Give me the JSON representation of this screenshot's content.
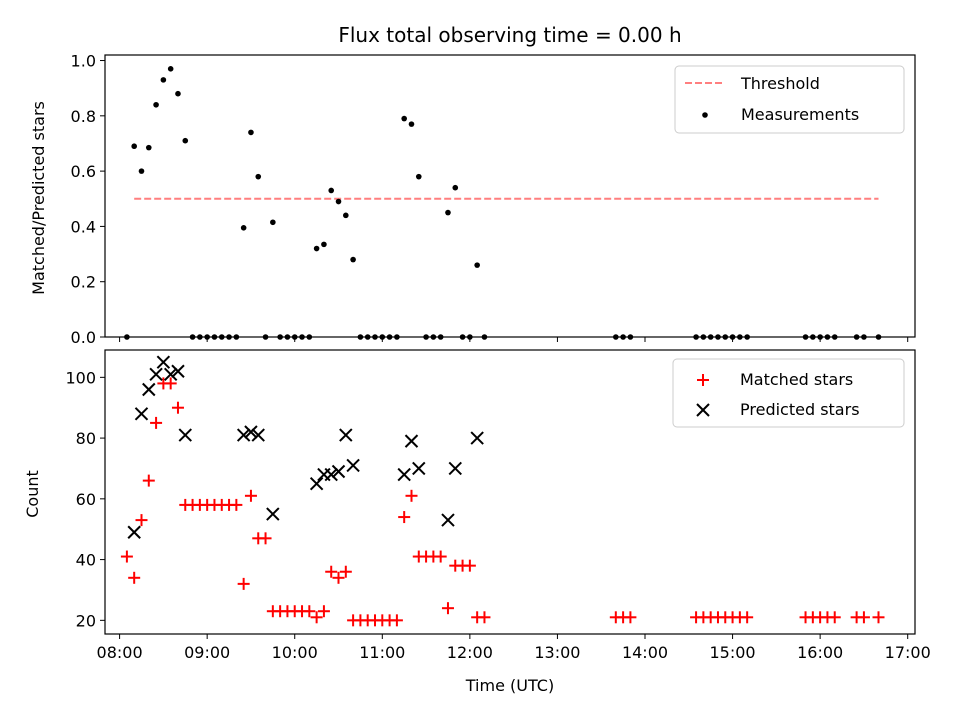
{
  "chart_data": [
    {
      "type": "scatter",
      "title": "Flux total observing time = 0.00 h",
      "xlabel": "",
      "ylabel": "Matched/Predicted stars",
      "xlim": [
        "07:50",
        "17:05"
      ],
      "ylim": [
        0,
        1.02
      ],
      "yticks": [
        "0.0",
        "0.2",
        "0.4",
        "0.6",
        "0.8",
        "1.0"
      ],
      "grid": false,
      "legend_position": "top-right",
      "threshold": {
        "name": "Threshold",
        "y": 0.5,
        "x_start": "08:10",
        "x_end": "16:40",
        "color": "#ff7f7f",
        "style": "dashed"
      },
      "series": [
        {
          "name": "Measurements",
          "color": "#000000",
          "marker": "dot",
          "points": [
            [
              "08:05",
              0.0
            ],
            [
              "08:10",
              0.69
            ],
            [
              "08:15",
              0.6
            ],
            [
              "08:20",
              0.685
            ],
            [
              "08:25",
              0.84
            ],
            [
              "08:30",
              0.93
            ],
            [
              "08:35",
              0.97
            ],
            [
              "08:40",
              0.88
            ],
            [
              "08:45",
              0.71
            ],
            [
              "08:50",
              0.0
            ],
            [
              "08:55",
              0.0
            ],
            [
              "09:00",
              0.0
            ],
            [
              "09:05",
              0.0
            ],
            [
              "09:10",
              0.0
            ],
            [
              "09:15",
              0.0
            ],
            [
              "09:20",
              0.0
            ],
            [
              "09:25",
              0.395
            ],
            [
              "09:30",
              0.74
            ],
            [
              "09:35",
              0.58
            ],
            [
              "09:40",
              0.0
            ],
            [
              "09:45",
              0.415
            ],
            [
              "09:50",
              0.0
            ],
            [
              "09:55",
              0.0
            ],
            [
              "10:00",
              0.0
            ],
            [
              "10:05",
              0.0
            ],
            [
              "10:10",
              0.0
            ],
            [
              "10:15",
              0.32
            ],
            [
              "10:20",
              0.335
            ],
            [
              "10:25",
              0.53
            ],
            [
              "10:30",
              0.49
            ],
            [
              "10:35",
              0.44
            ],
            [
              "10:40",
              0.28
            ],
            [
              "10:45",
              0.0
            ],
            [
              "10:50",
              0.0
            ],
            [
              "10:55",
              0.0
            ],
            [
              "11:00",
              0.0
            ],
            [
              "11:05",
              0.0
            ],
            [
              "11:10",
              0.0
            ],
            [
              "11:15",
              0.79
            ],
            [
              "11:20",
              0.77
            ],
            [
              "11:25",
              0.58
            ],
            [
              "11:30",
              0.0
            ],
            [
              "11:35",
              0.0
            ],
            [
              "11:40",
              0.0
            ],
            [
              "11:45",
              0.45
            ],
            [
              "11:50",
              0.54
            ],
            [
              "11:55",
              0.0
            ],
            [
              "12:00",
              0.0
            ],
            [
              "12:05",
              0.26
            ],
            [
              "12:10",
              0.0
            ],
            [
              "13:40",
              0.0
            ],
            [
              "13:45",
              0.0
            ],
            [
              "13:50",
              0.0
            ],
            [
              "14:35",
              0.0
            ],
            [
              "14:40",
              0.0
            ],
            [
              "14:45",
              0.0
            ],
            [
              "14:50",
              0.0
            ],
            [
              "14:55",
              0.0
            ],
            [
              "15:00",
              0.0
            ],
            [
              "15:05",
              0.0
            ],
            [
              "15:10",
              0.0
            ],
            [
              "15:50",
              0.0
            ],
            [
              "15:55",
              0.0
            ],
            [
              "16:00",
              0.0
            ],
            [
              "16:05",
              0.0
            ],
            [
              "16:10",
              0.0
            ],
            [
              "16:25",
              0.0
            ],
            [
              "16:30",
              0.0
            ],
            [
              "16:40",
              0.0
            ]
          ]
        }
      ]
    },
    {
      "type": "scatter",
      "title": "",
      "xlabel": "Time (UTC)",
      "ylabel": "Count",
      "xlim": [
        "07:50",
        "17:05"
      ],
      "ylim": [
        15.5,
        109
      ],
      "yticks": [
        "20",
        "40",
        "60",
        "80",
        "100"
      ],
      "xticks": [
        "08:00",
        "09:00",
        "10:00",
        "11:00",
        "12:00",
        "13:00",
        "14:00",
        "15:00",
        "16:00",
        "17:00"
      ],
      "grid": false,
      "legend_position": "top-right",
      "series": [
        {
          "name": "Matched stars",
          "color": "#ff0000",
          "marker": "plus",
          "points": [
            [
              "08:05",
              41
            ],
            [
              "08:10",
              34
            ],
            [
              "08:15",
              53
            ],
            [
              "08:20",
              66
            ],
            [
              "08:25",
              85
            ],
            [
              "08:30",
              98
            ],
            [
              "08:35",
              98
            ],
            [
              "08:40",
              90
            ],
            [
              "08:45",
              58
            ],
            [
              "08:50",
              58
            ],
            [
              "08:55",
              58
            ],
            [
              "09:00",
              58
            ],
            [
              "09:05",
              58
            ],
            [
              "09:10",
              58
            ],
            [
              "09:15",
              58
            ],
            [
              "09:20",
              58
            ],
            [
              "09:25",
              32
            ],
            [
              "09:30",
              61
            ],
            [
              "09:35",
              47
            ],
            [
              "09:40",
              47
            ],
            [
              "09:45",
              23
            ],
            [
              "09:50",
              23
            ],
            [
              "09:55",
              23
            ],
            [
              "10:00",
              23
            ],
            [
              "10:05",
              23
            ],
            [
              "10:10",
              23
            ],
            [
              "10:15",
              21
            ],
            [
              "10:20",
              23
            ],
            [
              "10:25",
              36
            ],
            [
              "10:30",
              34
            ],
            [
              "10:35",
              36
            ],
            [
              "10:40",
              20
            ],
            [
              "10:45",
              20
            ],
            [
              "10:50",
              20
            ],
            [
              "10:55",
              20
            ],
            [
              "11:00",
              20
            ],
            [
              "11:05",
              20
            ],
            [
              "11:10",
              20
            ],
            [
              "11:15",
              54
            ],
            [
              "11:20",
              61
            ],
            [
              "11:25",
              41
            ],
            [
              "11:30",
              41
            ],
            [
              "11:35",
              41
            ],
            [
              "11:40",
              41
            ],
            [
              "11:45",
              24
            ],
            [
              "11:50",
              38
            ],
            [
              "11:55",
              38
            ],
            [
              "12:00",
              38
            ],
            [
              "12:05",
              21
            ],
            [
              "12:10",
              21
            ],
            [
              "13:40",
              21
            ],
            [
              "13:45",
              21
            ],
            [
              "13:50",
              21
            ],
            [
              "14:35",
              21
            ],
            [
              "14:40",
              21
            ],
            [
              "14:45",
              21
            ],
            [
              "14:50",
              21
            ],
            [
              "14:55",
              21
            ],
            [
              "15:00",
              21
            ],
            [
              "15:05",
              21
            ],
            [
              "15:10",
              21
            ],
            [
              "15:50",
              21
            ],
            [
              "15:55",
              21
            ],
            [
              "16:00",
              21
            ],
            [
              "16:05",
              21
            ],
            [
              "16:10",
              21
            ],
            [
              "16:25",
              21
            ],
            [
              "16:30",
              21
            ],
            [
              "16:40",
              21
            ]
          ]
        },
        {
          "name": "Predicted stars",
          "color": "#000000",
          "marker": "x",
          "points": [
            [
              "08:10",
              49
            ],
            [
              "08:15",
              88
            ],
            [
              "08:20",
              96
            ],
            [
              "08:25",
              101
            ],
            [
              "08:30",
              105
            ],
            [
              "08:35",
              101
            ],
            [
              "08:40",
              102
            ],
            [
              "08:45",
              81
            ],
            [
              "09:25",
              81
            ],
            [
              "09:30",
              82
            ],
            [
              "09:35",
              81
            ],
            [
              "09:45",
              55
            ],
            [
              "10:15",
              65
            ],
            [
              "10:20",
              68
            ],
            [
              "10:25",
              68
            ],
            [
              "10:30",
              69
            ],
            [
              "10:35",
              81
            ],
            [
              "10:40",
              71
            ],
            [
              "11:15",
              68
            ],
            [
              "11:20",
              79
            ],
            [
              "11:25",
              70
            ],
            [
              "11:45",
              53
            ],
            [
              "11:50",
              70
            ],
            [
              "12:05",
              80
            ]
          ]
        }
      ]
    }
  ]
}
